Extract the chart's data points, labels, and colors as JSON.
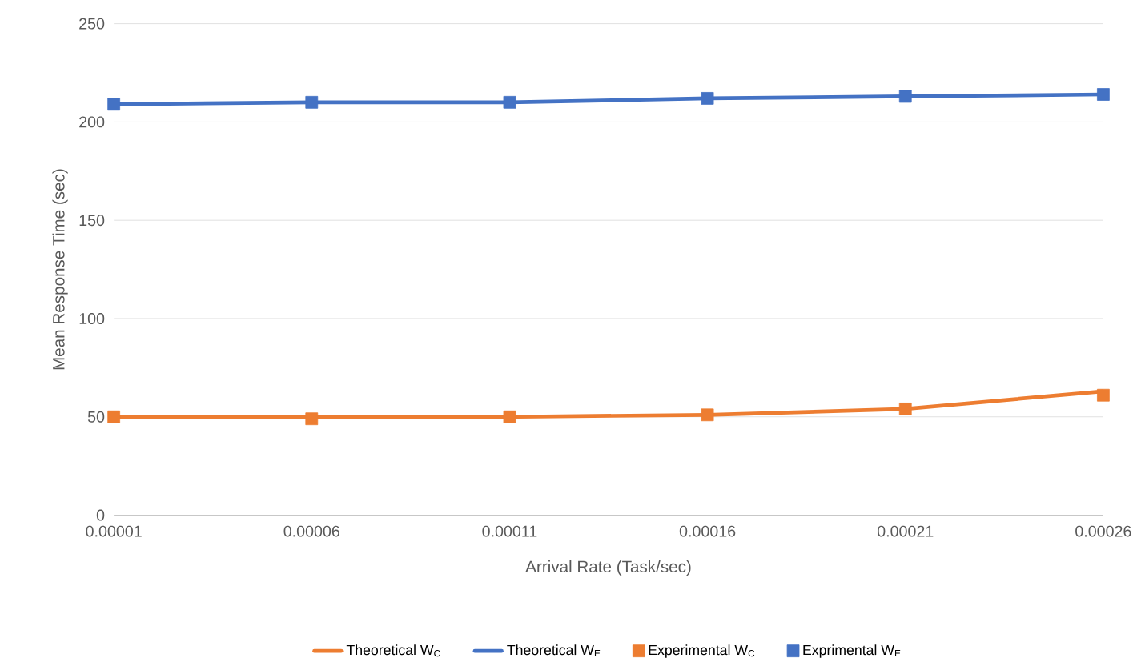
{
  "chart_data": {
    "type": "line",
    "xlabel": "Arrival Rate (Task/sec)",
    "ylabel": "Mean Response Time (sec)",
    "categories": [
      "0.00001",
      "0.00006",
      "0.00011",
      "0.00016",
      "0.00021",
      "0.00026"
    ],
    "ylim": [
      0,
      250
    ],
    "yticks": [
      0,
      50,
      100,
      150,
      200,
      250
    ],
    "grid": "y",
    "legend": "bottom",
    "series": [
      {
        "name": "Theoretical W$_{C}$",
        "marker": "none",
        "color": "#ed7d31",
        "values": [
          50,
          50,
          50,
          51,
          54,
          63
        ]
      },
      {
        "name": "Theoretical W$_{E}$",
        "marker": "none",
        "color": "#4472c4",
        "values": [
          209,
          210,
          210,
          212,
          213,
          214
        ]
      },
      {
        "name": "Experimental W$_{C}$",
        "type": "scatter",
        "marker": "square",
        "color": "#ed7d31",
        "values": [
          50,
          49,
          50,
          51,
          54,
          61
        ]
      },
      {
        "name": "Exprimental W$_{E}$",
        "type": "scatter",
        "marker": "square",
        "color": "#4472c4",
        "values": [
          209,
          210,
          210,
          212,
          213,
          214
        ]
      }
    ]
  }
}
